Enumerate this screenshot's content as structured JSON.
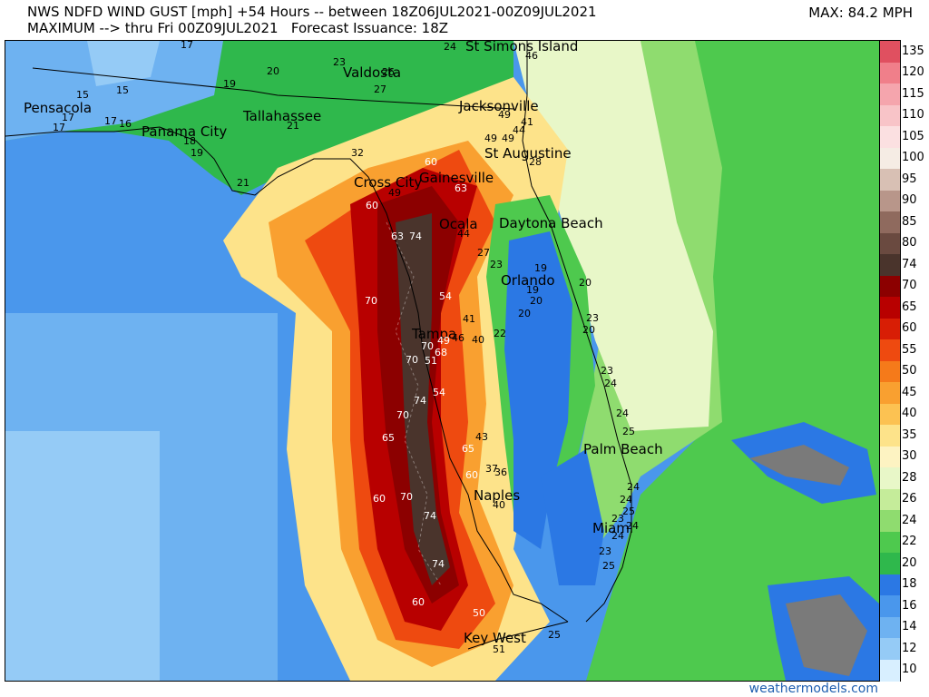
{
  "header": {
    "line1": "NWS NDFD WIND GUST [mph] +54 Hours -- between 18Z06JUL2021-00Z09JUL2021",
    "line2": "MAXIMUM --> thru Fri 00Z09JUL2021   Forecast Issuance: 18Z",
    "max_label": "MAX: 84.2 MPH"
  },
  "legend": {
    "labels": [
      "135",
      "120",
      "115",
      "110",
      "105",
      "100",
      "95",
      "90",
      "85",
      "80",
      "74",
      "70",
      "65",
      "60",
      "55",
      "50",
      "45",
      "40",
      "35",
      "30",
      "28",
      "26",
      "24",
      "22",
      "20",
      "18",
      "16",
      "14",
      "12",
      "10"
    ],
    "colors": [
      "#e05060",
      "#f07f8a",
      "#f5a5ad",
      "#f8c4c8",
      "#fbe0e1",
      "#f5ece4",
      "#d8c0b4",
      "#b8968a",
      "#8f6a5e",
      "#6a4a40",
      "#4a342c",
      "#8c0000",
      "#b80000",
      "#d81e05",
      "#ee4a10",
      "#f57a1a",
      "#f9a030",
      "#fcc252",
      "#fde38a",
      "#fdf3c2",
      "#e8f7c8",
      "#c5ec9a",
      "#8fdc6f",
      "#4ec94e",
      "#2fb84c",
      "#2b78e4",
      "#4a97ec",
      "#6eb2f1",
      "#95cbf6",
      "#d8efff"
    ]
  },
  "cities": [
    {
      "name": "St Simons Island"
    },
    {
      "name": "Valdosta"
    },
    {
      "name": "Jacksonville"
    },
    {
      "name": "Pensacola"
    },
    {
      "name": "Tallahassee"
    },
    {
      "name": "Panama City"
    },
    {
      "name": "St Augustine"
    },
    {
      "name": "Gainesville"
    },
    {
      "name": "Cross City"
    },
    {
      "name": "Ocala"
    },
    {
      "name": "Daytona Beach"
    },
    {
      "name": "Orlando"
    },
    {
      "name": "Tampa"
    },
    {
      "name": "Palm Beach"
    },
    {
      "name": "Naples"
    },
    {
      "name": "Miami"
    },
    {
      "name": "Key West"
    }
  ],
  "values": [
    "17",
    "24",
    "46",
    "20",
    "23",
    "19",
    "26",
    "27",
    "15",
    "15",
    "17",
    "17",
    "16",
    "17",
    "21",
    "18",
    "19",
    "49",
    "41",
    "44",
    "49",
    "49",
    "28",
    "32",
    "60",
    "21",
    "63",
    "49",
    "60",
    "63",
    "74",
    "44",
    "27",
    "23",
    "19",
    "20",
    "54",
    "19",
    "20",
    "41",
    "20",
    "70",
    "22",
    "23",
    "49",
    "46",
    "40",
    "20",
    "70",
    "68",
    "51",
    "23",
    "24",
    "54",
    "74",
    "70",
    "24",
    "65",
    "43",
    "65",
    "37",
    "36",
    "60",
    "60",
    "70",
    "40",
    "74",
    "24",
    "24",
    "25",
    "23",
    "24",
    "23",
    "24",
    "25",
    "74",
    "60",
    "25",
    "51",
    "50",
    "70",
    "25"
  ],
  "footer": "weathermodels.com"
}
